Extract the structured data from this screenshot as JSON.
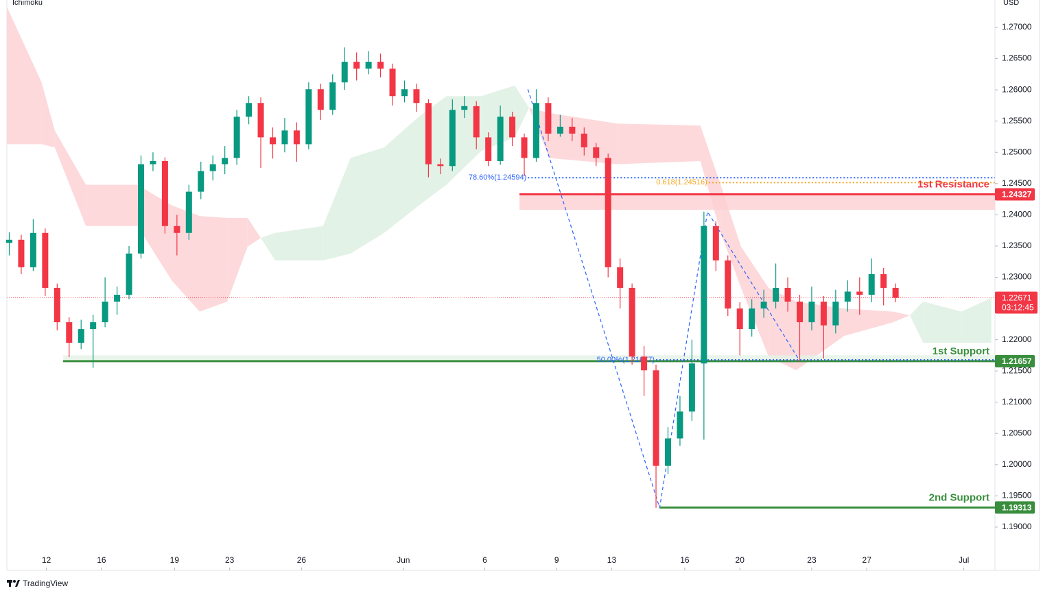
{
  "chart_data": {
    "type": "candlestick",
    "title": "Ichimoku",
    "currency": "USD",
    "brand": "TradingView",
    "countdown": "03:12:45",
    "xlim": [
      -0.2,
      82.3
    ],
    "ylim": [
      1.18308,
      1.27439
    ],
    "xticks": [
      {
        "value": 3.1,
        "label": "12"
      },
      {
        "value": 7.7,
        "label": "16"
      },
      {
        "value": 13.8,
        "label": "19"
      },
      {
        "value": 18.4,
        "label": "23"
      },
      {
        "value": 24.4,
        "label": "26"
      },
      {
        "value": 32.9,
        "label": "Jun"
      },
      {
        "value": 39.7,
        "label": "6"
      },
      {
        "value": 45.7,
        "label": "9"
      },
      {
        "value": 50.3,
        "label": "13"
      },
      {
        "value": 56.4,
        "label": "16"
      },
      {
        "value": 61.0,
        "label": "20"
      },
      {
        "value": 67.0,
        "label": "23"
      },
      {
        "value": 71.6,
        "label": "27"
      },
      {
        "value": 79.7,
        "label": "Jul"
      }
    ],
    "yticks": [
      {
        "value": 1.19,
        "label": "1.19000"
      },
      {
        "value": 1.195,
        "label": "1.19500"
      },
      {
        "value": 1.2,
        "label": "1.20000"
      },
      {
        "value": 1.205,
        "label": "1.20500"
      },
      {
        "value": 1.21,
        "label": "1.21000"
      },
      {
        "value": 1.215,
        "label": "1.21500"
      },
      {
        "value": 1.22,
        "label": "1.22000"
      },
      {
        "value": 1.225,
        "label": "1.22500"
      },
      {
        "value": 1.23,
        "label": "1.23000"
      },
      {
        "value": 1.235,
        "label": "1.23500"
      },
      {
        "value": 1.24,
        "label": "1.24000"
      },
      {
        "value": 1.245,
        "label": "1.24500"
      },
      {
        "value": 1.25,
        "label": "1.25000"
      },
      {
        "value": 1.255,
        "label": "1.25500"
      },
      {
        "value": 1.26,
        "label": "1.26000"
      },
      {
        "value": 1.265,
        "label": "1.26500"
      },
      {
        "value": 1.27,
        "label": "1.27000"
      }
    ],
    "candles": {
      "up_color": "#089981",
      "down_color": "#f23645",
      "open": [
        1.2355,
        1.236,
        1.2316,
        1.2371,
        1.2283,
        1.2228,
        1.2195,
        1.2217,
        1.2228,
        1.2261,
        1.2272,
        1.2338,
        1.2481,
        1.2486,
        1.2382,
        1.2371,
        1.2437,
        1.247,
        1.2481,
        1.2491,
        1.2557,
        1.2579,
        1.2524,
        1.2513,
        1.2535,
        1.2513,
        1.2601,
        1.2568,
        1.2612,
        1.2645,
        1.2634,
        1.2645,
        1.2634,
        1.259,
        1.2601,
        1.2579,
        1.2481,
        1.2478,
        1.2568,
        1.2574,
        1.2524,
        1.2486,
        1.2557,
        1.2524,
        1.2491,
        1.2579,
        1.253,
        1.2541,
        1.253,
        1.2508,
        1.2491,
        1.2316,
        1.2283,
        1.2173,
        1.2151,
        1.1998,
        1.2042,
        1.2085,
        1.2162,
        1.2382,
        1.2327,
        1.225,
        1.2217,
        1.225,
        1.2261,
        1.2283,
        1.2261,
        1.2228,
        1.2261,
        1.2223,
        1.2261,
        1.2277,
        1.2272,
        1.2305,
        1.2283
      ],
      "high": [
        1.2372,
        1.2368,
        1.2393,
        1.2378,
        1.229,
        1.2236,
        1.2232,
        1.224,
        1.23,
        1.2285,
        1.235,
        1.2495,
        1.25,
        1.2492,
        1.24,
        1.2448,
        1.2485,
        1.2495,
        1.251,
        1.2568,
        1.259,
        1.2588,
        1.254,
        1.2555,
        1.2548,
        1.2612,
        1.261,
        1.2625,
        1.2668,
        1.266,
        1.2662,
        1.2658,
        1.2642,
        1.2615,
        1.261,
        1.2585,
        1.249,
        1.2585,
        1.259,
        1.2582,
        1.2532,
        1.2575,
        1.2565,
        1.253,
        1.2601,
        1.2588,
        1.256,
        1.2555,
        1.254,
        1.2515,
        1.2498,
        1.233,
        1.229,
        1.219,
        1.216,
        1.206,
        1.211,
        1.22,
        1.2405,
        1.239,
        1.2335,
        1.226,
        1.2265,
        1.228,
        1.2322,
        1.23,
        1.2272,
        1.2285,
        1.227,
        1.228,
        1.2295,
        1.23,
        1.233,
        1.2315,
        1.229
      ],
      "low": [
        1.2335,
        1.2305,
        1.231,
        1.227,
        1.2215,
        1.2172,
        1.2185,
        1.2155,
        1.222,
        1.224,
        1.2265,
        1.233,
        1.247,
        1.237,
        1.2335,
        1.236,
        1.2425,
        1.2455,
        1.2465,
        1.248,
        1.2545,
        1.2475,
        1.249,
        1.25,
        1.2485,
        1.2505,
        1.2552,
        1.256,
        1.26,
        1.2615,
        1.2625,
        1.262,
        1.2575,
        1.258,
        1.2565,
        1.246,
        1.2465,
        1.247,
        1.2555,
        1.2505,
        1.2478,
        1.248,
        1.251,
        1.2462,
        1.2485,
        1.2518,
        1.2525,
        1.2518,
        1.2495,
        1.2478,
        1.23,
        1.225,
        1.216,
        1.211,
        1.1931,
        1.1985,
        1.203,
        1.207,
        1.204,
        1.231,
        1.2238,
        1.2175,
        1.2205,
        1.2235,
        1.225,
        1.2245,
        1.2165,
        1.2215,
        1.217,
        1.221,
        1.2245,
        1.224,
        1.226,
        1.2255,
        1.226
      ],
      "close": [
        1.236,
        1.2316,
        1.2371,
        1.2283,
        1.2228,
        1.2195,
        1.2217,
        1.2228,
        1.2261,
        1.2272,
        1.2338,
        1.2481,
        1.2486,
        1.2382,
        1.2371,
        1.2437,
        1.247,
        1.2481,
        1.2491,
        1.2557,
        1.2579,
        1.2524,
        1.2513,
        1.2535,
        1.2513,
        1.2601,
        1.2568,
        1.2612,
        1.2645,
        1.2634,
        1.2645,
        1.2634,
        1.259,
        1.2601,
        1.2579,
        1.2481,
        1.2478,
        1.2568,
        1.2574,
        1.2524,
        1.2486,
        1.2557,
        1.2524,
        1.2491,
        1.2579,
        1.253,
        1.2541,
        1.253,
        1.2508,
        1.2491,
        1.2316,
        1.2283,
        1.2173,
        1.2151,
        1.1998,
        1.2042,
        1.2085,
        1.2162,
        1.2382,
        1.2327,
        1.225,
        1.2217,
        1.225,
        1.2261,
        1.2283,
        1.2261,
        1.2228,
        1.2261,
        1.2223,
        1.2261,
        1.2277,
        1.2272,
        1.2305,
        1.2283,
        1.22671
      ]
    },
    "cloud": {
      "up_color": "#e3f2e6",
      "down_color": "#fdd9dc",
      "x": [
        -0.2,
        2.7,
        3.8,
        6.4,
        10.7,
        13.6,
        15.9,
        18.2,
        19.9,
        21.0,
        22.2,
        26.2,
        28.5,
        31.3,
        34.2,
        36.5,
        39.4,
        42.2,
        43.4,
        45.1,
        50.8,
        57.7,
        59.4,
        61.1,
        63.4,
        65.7,
        69.7,
        73.8,
        75.2,
        76.3,
        79.5,
        82.0
      ],
      "span_a": [
        1.2513,
        1.2513,
        1.2508,
        1.2382,
        1.2382,
        1.2294,
        1.2245,
        1.2261,
        1.2349,
        1.2363,
        1.2371,
        1.2382,
        1.2491,
        1.2508,
        1.2557,
        1.259,
        1.259,
        1.2607,
        1.2571,
        1.2491,
        1.2481,
        1.2486,
        1.2371,
        1.2283,
        1.2173,
        1.2151,
        1.2206,
        1.2228,
        1.2239,
        1.2261,
        1.2245,
        1.2267
      ],
      "span_b": [
        1.2733,
        1.2612,
        1.2535,
        1.2448,
        1.2448,
        1.2415,
        1.2398,
        1.2395,
        1.2395,
        1.2363,
        1.2327,
        1.2327,
        1.2338,
        1.2371,
        1.2415,
        1.2448,
        1.2502,
        1.2524,
        1.2571,
        1.2563,
        1.2546,
        1.2543,
        1.2448,
        1.2349,
        1.2283,
        1.2261,
        1.225,
        1.2245,
        1.2239,
        1.2195,
        1.2195,
        1.2195
      ]
    },
    "levels": [
      {
        "name": "1st Resistance",
        "price": 1.24327,
        "zone": 1.2408,
        "start": 42.6,
        "color": "#f23645",
        "zone_color": "#fdd0d3"
      },
      {
        "name": "1st Support",
        "price": 1.21657,
        "zone": 1.2175,
        "start": 4.5,
        "color": "#388e3c",
        "zone_color": "#e3f2e6"
      },
      {
        "name": "2nd Support",
        "price": 1.19313,
        "start": 54.3,
        "color": "#388e3c"
      }
    ],
    "fib_levels": [
      {
        "label": "78.60%(1.24594)",
        "price": 1.24594,
        "start": 43.3,
        "color": "#2962ff"
      },
      {
        "label": "0.618(1.24516)",
        "price": 1.24516,
        "start": 58.4,
        "color": "#f5a623"
      },
      {
        "label": "50.00%(1.21677)",
        "price": 1.21677,
        "start": 54.0,
        "color": "#2962ff"
      }
    ],
    "pattern": {
      "x": [
        43.3,
        54.3,
        58.3,
        66.0
      ],
      "y": [
        1.2601,
        1.1931,
        1.2405,
        1.2166
      ],
      "color": "#2962ff"
    },
    "last_color": "#f23645"
  }
}
